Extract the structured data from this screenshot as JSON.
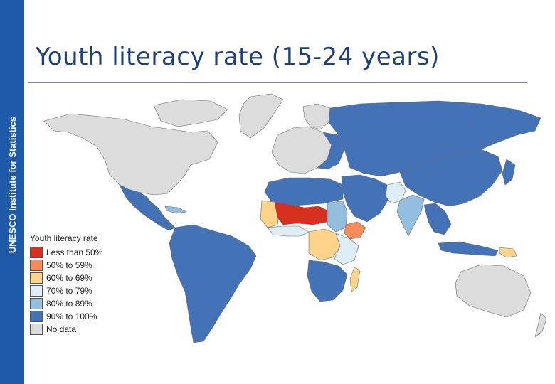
{
  "sidebar": {
    "text": "UNESCO Institute for Statistics"
  },
  "slide": {
    "title": "Youth literacy rate (15-24 years)"
  },
  "legend": {
    "title": "Youth literacy rate",
    "items": [
      {
        "label": "Less than 50%",
        "color": "#d7301f"
      },
      {
        "label": "50% to 59%",
        "color": "#f58c59"
      },
      {
        "label": "60% to 69%",
        "color": "#fdd48a"
      },
      {
        "label": "70% to 79%",
        "color": "#ddeef7"
      },
      {
        "label": "80% to 89%",
        "color": "#94bedf"
      },
      {
        "label": "90% to 100%",
        "color": "#4472b6"
      },
      {
        "label": "No data",
        "color": "#dcdcdc"
      }
    ]
  },
  "map": {
    "regions": [
      {
        "name": "North America",
        "category": "No data"
      },
      {
        "name": "Greenland",
        "category": "No data"
      },
      {
        "name": "Mexico & Central America",
        "category": "90% to 100%"
      },
      {
        "name": "South America",
        "category": "90% to 100%"
      },
      {
        "name": "Europe",
        "category": "No data"
      },
      {
        "name": "Russia & Central Asia",
        "category": "90% to 100%"
      },
      {
        "name": "China & East Asia",
        "category": "90% to 100%"
      },
      {
        "name": "Middle East",
        "category": "90% to 100%"
      },
      {
        "name": "India",
        "category": "80% to 89%"
      },
      {
        "name": "Pakistan",
        "category": "70% to 79%"
      },
      {
        "name": "North Africa",
        "category": "90% to 100%"
      },
      {
        "name": "Mali, Niger, Chad",
        "category": "Less than 50%"
      },
      {
        "name": "Mauritania & West Africa",
        "category": "60% to 69%"
      },
      {
        "name": "Sudan",
        "category": "80% to 89%"
      },
      {
        "name": "Ethiopia",
        "category": "50% to 59%"
      },
      {
        "name": "Central Africa",
        "category": "60% to 69%"
      },
      {
        "name": "East Africa",
        "category": "70% to 79%"
      },
      {
        "name": "Southern Africa",
        "category": "90% to 100%"
      },
      {
        "name": "Madagascar",
        "category": "60% to 69%"
      },
      {
        "name": "Southeast Asia",
        "category": "90% to 100%"
      },
      {
        "name": "Papua New Guinea",
        "category": "60% to 69%"
      },
      {
        "name": "Australia",
        "category": "No data"
      }
    ]
  }
}
